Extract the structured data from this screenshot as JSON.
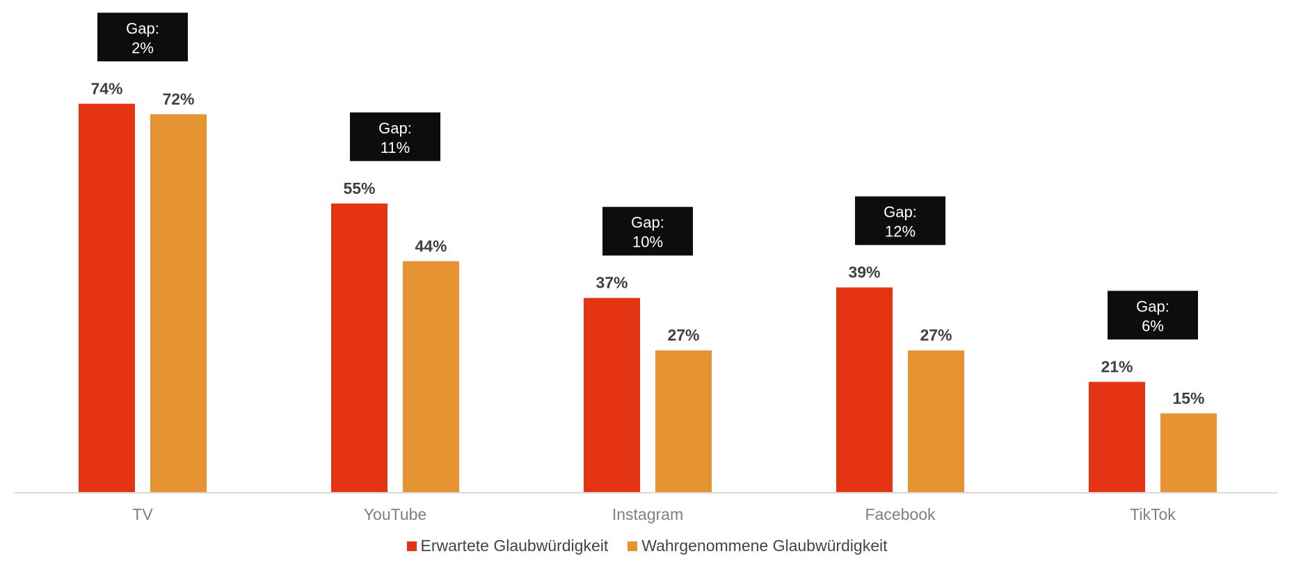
{
  "chart_data": {
    "type": "bar",
    "categories": [
      "TV",
      "YouTube",
      "Instagram",
      "Facebook",
      "TikTok"
    ],
    "series": [
      {
        "name": "Erwartete Glaubwürdigkeit",
        "color": "#E53414",
        "values": [
          74,
          55,
          37,
          39,
          21
        ]
      },
      {
        "name": "Wahrgenommene Glaubwürdigkeit",
        "color": "#E69334",
        "values": [
          72,
          44,
          27,
          27,
          15
        ]
      }
    ],
    "annotations": [
      {
        "line1": "Gap:",
        "line2": "2%"
      },
      {
        "line1": "Gap:",
        "line2": "11%"
      },
      {
        "line1": "Gap:",
        "line2": "10%"
      },
      {
        "line1": "Gap:",
        "line2": "12%"
      },
      {
        "line1": "Gap:",
        "line2": "6%"
      }
    ],
    "value_suffix": "%",
    "ylim": [
      0,
      80
    ],
    "grid": false,
    "legend_position": "bottom"
  }
}
